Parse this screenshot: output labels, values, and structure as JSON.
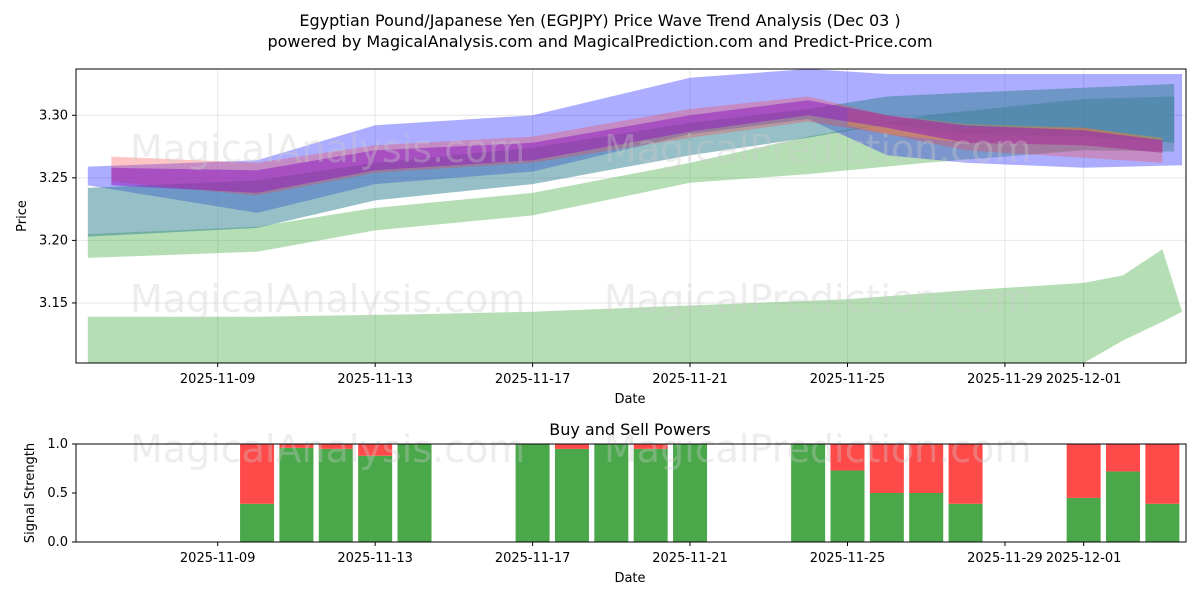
{
  "title": "Egyptian Pound/Japanese Yen (EGPJPY) Price Wave Trend Analysis (Dec 03 )",
  "subtitle": "powered by MagicalAnalysis.com and MagicalPrediction.com and Predict-Price.com",
  "watermarks": [
    "MagicalAnalysis.com",
    "MagicalPrediction.com"
  ],
  "chart_data": [
    {
      "type": "area",
      "title": "",
      "xlabel": "Date",
      "ylabel": "Price",
      "x_start": "2025-11-06",
      "x_end": "2025-12-04",
      "xlim": [
        -0.6,
        27.6
      ],
      "ylim": [
        3.102,
        3.337
      ],
      "grid": true,
      "x_ticks": [
        {
          "day": 3,
          "label": "2025-11-09"
        },
        {
          "day": 7,
          "label": "2025-11-13"
        },
        {
          "day": 11,
          "label": "2025-11-17"
        },
        {
          "day": 15,
          "label": "2025-11-21"
        },
        {
          "day": 19,
          "label": "2025-11-25"
        },
        {
          "day": 23,
          "label": "2025-11-29"
        },
        {
          "day": 25,
          "label": "2025-12-01"
        }
      ],
      "y_ticks": [
        3.15,
        3.2,
        3.25,
        3.3
      ],
      "y_tick_labels": [
        "3.15",
        "3.20",
        "3.25",
        "3.30"
      ],
      "series": [
        {
          "name": "green-low-band",
          "color": "#2ca02c",
          "opacity": 0.35,
          "x": [
            -0.3,
            4,
            8,
            11,
            15,
            19,
            22,
            25,
            26,
            27,
            27.5
          ],
          "upper": [
            3.139,
            3.139,
            3.141,
            3.143,
            3.148,
            3.153,
            3.16,
            3.166,
            3.172,
            3.193,
            3.143
          ],
          "lower": [
            3.09,
            3.09,
            3.09,
            3.09,
            3.09,
            3.09,
            3.095,
            3.102,
            3.12,
            3.135,
            3.143
          ]
        },
        {
          "name": "green-main-band",
          "color": "#2ca02c",
          "opacity": 0.35,
          "x": [
            -0.3,
            4,
            7,
            11,
            15,
            18,
            21,
            25,
            27.3
          ],
          "upper": [
            3.205,
            3.211,
            3.226,
            3.238,
            3.262,
            3.283,
            3.3,
            3.313,
            3.315
          ],
          "lower": [
            3.186,
            3.191,
            3.208,
            3.22,
            3.246,
            3.253,
            3.262,
            3.272,
            3.271
          ]
        },
        {
          "name": "blue-wide-band",
          "color": "#0000ff",
          "opacity": 0.32,
          "x": [
            -0.3,
            4,
            7,
            11,
            15,
            18,
            20,
            22,
            25,
            27.5
          ],
          "upper": [
            3.259,
            3.264,
            3.292,
            3.3,
            3.33,
            3.337,
            3.333,
            3.333,
            3.333,
            3.333
          ],
          "lower": [
            3.244,
            3.222,
            3.245,
            3.255,
            3.285,
            3.297,
            3.268,
            3.262,
            3.258,
            3.26
          ]
        },
        {
          "name": "teal-band",
          "color": "#2f7f8f",
          "opacity": 0.5,
          "x": [
            -0.3,
            4,
            7,
            11,
            15,
            18,
            20,
            22,
            25,
            27.3
          ],
          "upper": [
            3.242,
            3.248,
            3.262,
            3.274,
            3.294,
            3.305,
            3.315,
            3.318,
            3.322,
            3.325
          ],
          "lower": [
            3.203,
            3.21,
            3.232,
            3.245,
            3.268,
            3.282,
            3.293,
            3.285,
            3.283,
            3.278
          ]
        },
        {
          "name": "red-band",
          "color": "#ff4040",
          "opacity": 0.3,
          "x": [
            0.3,
            4,
            7,
            11,
            15,
            18,
            20,
            22,
            25,
            27
          ],
          "upper": [
            3.267,
            3.262,
            3.276,
            3.283,
            3.305,
            3.315,
            3.3,
            3.29,
            3.29,
            3.28
          ],
          "lower": [
            3.247,
            3.236,
            3.254,
            3.262,
            3.282,
            3.295,
            3.285,
            3.272,
            3.266,
            3.262
          ]
        },
        {
          "name": "orange-band",
          "color": "#ff9020",
          "opacity": 0.35,
          "x": [
            19,
            20,
            22,
            25,
            27
          ],
          "upper": [
            3.305,
            3.3,
            3.293,
            3.29,
            3.282
          ],
          "lower": [
            3.292,
            3.285,
            3.278,
            3.276,
            3.27
          ]
        },
        {
          "name": "purple-band",
          "color": "#9020c0",
          "opacity": 0.55,
          "x": [
            0.3,
            4,
            7,
            11,
            15,
            18,
            20,
            22,
            25,
            27
          ],
          "upper": [
            3.258,
            3.256,
            3.272,
            3.278,
            3.3,
            3.312,
            3.3,
            3.292,
            3.288,
            3.28
          ],
          "lower": [
            3.244,
            3.238,
            3.256,
            3.264,
            3.287,
            3.3,
            3.29,
            3.278,
            3.276,
            3.27
          ]
        }
      ]
    },
    {
      "type": "bar",
      "title": "Buy and Sell Powers",
      "xlabel": "Date",
      "ylabel": "Signal Strength",
      "ylim": [
        0,
        1.0
      ],
      "y_ticks": [
        0,
        0.5,
        1.0
      ],
      "y_tick_labels": [
        "0.0",
        "0.5",
        "1.0"
      ],
      "x_ticks": [
        {
          "day": 3,
          "label": "2025-11-09"
        },
        {
          "day": 7,
          "label": "2025-11-13"
        },
        {
          "day": 11,
          "label": "2025-11-17"
        },
        {
          "day": 15,
          "label": "2025-11-21"
        },
        {
          "day": 19,
          "label": "2025-11-25"
        },
        {
          "day": 23,
          "label": "2025-11-29"
        },
        {
          "day": 25,
          "label": "2025-12-01"
        }
      ],
      "series_names": [
        "Buy",
        "Sell"
      ],
      "bars": [
        {
          "day": 4,
          "buy": 0.39
        },
        {
          "day": 5,
          "buy": 0.96
        },
        {
          "day": 6,
          "buy": 0.95
        },
        {
          "day": 7,
          "buy": 0.88
        },
        {
          "day": 8,
          "buy": 1.0
        },
        {
          "day": 11,
          "buy": 1.0
        },
        {
          "day": 12,
          "buy": 0.95
        },
        {
          "day": 13,
          "buy": 1.0
        },
        {
          "day": 14,
          "buy": 0.95
        },
        {
          "day": 15,
          "buy": 1.0
        },
        {
          "day": 18,
          "buy": 1.0
        },
        {
          "day": 19,
          "buy": 0.73
        },
        {
          "day": 20,
          "buy": 0.5
        },
        {
          "day": 21,
          "buy": 0.5
        },
        {
          "day": 22,
          "buy": 0.39
        },
        {
          "day": 25,
          "buy": 0.45
        },
        {
          "day": 26,
          "buy": 0.72
        },
        {
          "day": 27,
          "buy": 0.39
        }
      ],
      "colors": {
        "buy": "#4aa84a",
        "sell": "#ff4a4a"
      }
    }
  ]
}
